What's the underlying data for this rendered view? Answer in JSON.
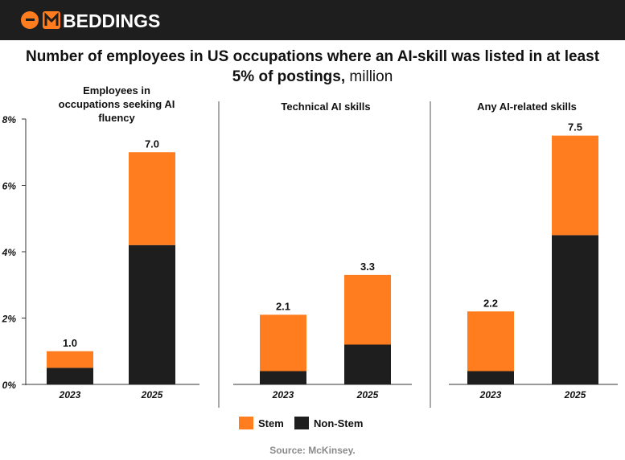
{
  "brand": {
    "name": "EMBEDDINGS",
    "accent": "#ff7d1e",
    "header_bg": "#1e1e1e"
  },
  "title": {
    "bold": "Number of employees in US occupations where an AI-skill was listed in at least 5% of postings,",
    "light": " million"
  },
  "source": "Source: McKinsey.",
  "chart_data": {
    "type": "bar",
    "stacked": true,
    "y_ticks": [
      "0%",
      "2%",
      "4%",
      "6%",
      "8%"
    ],
    "ylim": [
      0,
      8
    ],
    "grid": false,
    "legend": {
      "placement": "bottom-center",
      "entries": [
        {
          "name": "Stem",
          "color": "#ff7d1e"
        },
        {
          "name": "Non-Stem",
          "color": "#1e1e1e"
        }
      ]
    },
    "panels": [
      {
        "title": "Employees in occupations seeking AI fluency",
        "categories": [
          "2023",
          "2025"
        ],
        "series": [
          {
            "name": "Non-Stem",
            "values": [
              0.5,
              4.2
            ]
          },
          {
            "name": "Stem",
            "values": [
              0.5,
              2.8
            ]
          }
        ],
        "totals": [
          "1.0",
          "7.0"
        ]
      },
      {
        "title": "Technical AI skills",
        "categories": [
          "2023",
          "2025"
        ],
        "series": [
          {
            "name": "Non-Stem",
            "values": [
              0.4,
              1.2
            ]
          },
          {
            "name": "Stem",
            "values": [
              1.7,
              2.1
            ]
          }
        ],
        "totals": [
          "2.1",
          "3.3"
        ]
      },
      {
        "title": "Any AI-related skills",
        "categories": [
          "2023",
          "2025"
        ],
        "series": [
          {
            "name": "Non-Stem",
            "values": [
              0.4,
              4.5
            ]
          },
          {
            "name": "Stem",
            "values": [
              1.8,
              3.0
            ]
          }
        ],
        "totals": [
          "2.2",
          "7.5"
        ]
      }
    ]
  }
}
